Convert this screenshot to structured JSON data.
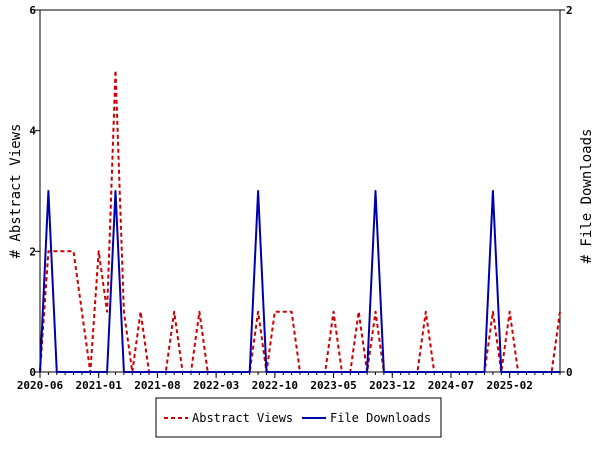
{
  "chart_data": {
    "type": "line",
    "title": "",
    "xlabel": "",
    "ylabel": "# Abstract Views",
    "y2label": "# File Downloads",
    "xlim": [
      0,
      62
    ],
    "ylim": [
      0,
      6
    ],
    "y2lim": [
      0,
      2
    ],
    "grid": false,
    "legend_position": "bottom",
    "x_ticks": [
      {
        "x": 0,
        "label": "2020-06"
      },
      {
        "x": 7,
        "label": "2021-01"
      },
      {
        "x": 14,
        "label": "2021-08"
      },
      {
        "x": 21,
        "label": "2022-03"
      },
      {
        "x": 28,
        "label": "2022-10"
      },
      {
        "x": 35,
        "label": "2023-05"
      },
      {
        "x": 42,
        "label": "2023-12"
      },
      {
        "x": 49,
        "label": "2024-07"
      },
      {
        "x": 56,
        "label": "2025-02"
      }
    ],
    "y_ticks": [
      0,
      2,
      4,
      6
    ],
    "y2_ticks": [
      0,
      2
    ],
    "series": [
      {
        "name": "Abstract Views",
        "axis": "left",
        "color": "#cc0000",
        "style": "dashed",
        "values": [
          0,
          2,
          2,
          2,
          2,
          1,
          0,
          2,
          1,
          5,
          1,
          0,
          1,
          0,
          0,
          0,
          1,
          0,
          0,
          1,
          0,
          0,
          0,
          0,
          0,
          0,
          1,
          0,
          1,
          1,
          1,
          0,
          0,
          0,
          0,
          1,
          0,
          0,
          1,
          0,
          1,
          0,
          0,
          0,
          0,
          0,
          1,
          0,
          0,
          0,
          0,
          0,
          0,
          0,
          1,
          0,
          1,
          0,
          0,
          0,
          0,
          0,
          1
        ]
      },
      {
        "name": "File Downloads",
        "axis": "right",
        "color": "#0000aa",
        "style": "solid",
        "values": [
          0,
          1,
          0,
          0,
          0,
          0,
          0,
          0,
          0,
          1,
          0,
          0,
          0,
          0,
          0,
          0,
          0,
          0,
          0,
          0,
          0,
          0,
          0,
          0,
          0,
          0,
          1,
          0,
          0,
          0,
          0,
          0,
          0,
          0,
          0,
          0,
          0,
          0,
          0,
          0,
          1,
          0,
          0,
          0,
          0,
          0,
          0,
          0,
          0,
          0,
          0,
          0,
          0,
          0,
          1,
          0,
          0,
          0,
          0,
          0,
          0,
          0,
          0
        ]
      }
    ]
  }
}
